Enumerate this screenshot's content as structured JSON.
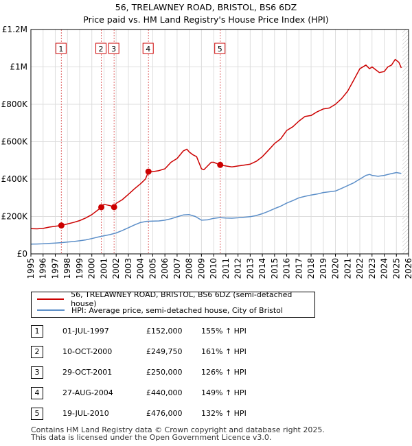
{
  "chart_data": {
    "type": "line",
    "title": "56, TRELAWNEY ROAD, BRISTOL, BS6 6DZ",
    "subtitle": "Price paid vs. HM Land Registry's House Price Index (HPI)",
    "xlim": [
      1995.0,
      2026.0
    ],
    "ylim": [
      0,
      1200000
    ],
    "y_ticks": [
      {
        "value": 0,
        "label": "£0"
      },
      {
        "value": 200000,
        "label": "£200K"
      },
      {
        "value": 400000,
        "label": "£400K"
      },
      {
        "value": 600000,
        "label": "£600K"
      },
      {
        "value": 800000,
        "label": "£800K"
      },
      {
        "value": 1000000,
        "label": "£1M"
      },
      {
        "value": 1200000,
        "label": "£1.2M"
      }
    ],
    "x_ticks": [
      "1995",
      "1996",
      "1997",
      "1998",
      "1999",
      "2000",
      "2001",
      "2002",
      "2003",
      "2004",
      "2005",
      "2006",
      "2007",
      "2008",
      "2009",
      "2010",
      "2011",
      "2012",
      "2013",
      "2014",
      "2015",
      "2016",
      "2017",
      "2018",
      "2019",
      "2020",
      "2021",
      "2022",
      "2023",
      "2024",
      "2025",
      "2026"
    ],
    "series": [
      {
        "name": "56, TRELAWNEY ROAD, BRISTOL, BS6 6DZ (semi-detached house)",
        "color": "#cc0000",
        "x": [
          1995.0,
          1995.5,
          1996.0,
          1996.5,
          1997.0,
          1997.5,
          1998.0,
          1998.5,
          1999.0,
          1999.5,
          2000.0,
          2000.5,
          2000.78,
          2001.0,
          2001.5,
          2001.83,
          2002.0,
          2002.5,
          2003.0,
          2003.5,
          2004.0,
          2004.4,
          2004.65,
          2005.0,
          2005.5,
          2006.0,
          2006.5,
          2007.0,
          2007.5,
          2007.8,
          2008.0,
          2008.3,
          2008.6,
          2009.0,
          2009.2,
          2009.5,
          2009.8,
          2010.0,
          2010.3,
          2010.54,
          2011.0,
          2011.5,
          2012.0,
          2012.5,
          2013.0,
          2013.5,
          2014.0,
          2014.5,
          2015.0,
          2015.5,
          2016.0,
          2016.5,
          2017.0,
          2017.5,
          2018.0,
          2018.5,
          2019.0,
          2019.5,
          2020.0,
          2020.5,
          2021.0,
          2021.5,
          2022.0,
          2022.5,
          2022.8,
          2023.0,
          2023.3,
          2023.6,
          2024.0,
          2024.3,
          2024.6,
          2024.9,
          2025.2,
          2025.4
        ],
        "values": [
          135000,
          134000,
          136000,
          143000,
          148000,
          152000,
          160000,
          168000,
          178000,
          192000,
          210000,
          235000,
          249750,
          265000,
          258000,
          250000,
          270000,
          290000,
          318000,
          348000,
          375000,
          400000,
          440000,
          440000,
          445000,
          455000,
          490000,
          510000,
          550000,
          560000,
          545000,
          530000,
          520000,
          455000,
          450000,
          470000,
          490000,
          490000,
          482000,
          476000,
          470000,
          465000,
          470000,
          475000,
          480000,
          495000,
          520000,
          555000,
          590000,
          615000,
          660000,
          680000,
          710000,
          735000,
          740000,
          760000,
          775000,
          780000,
          800000,
          830000,
          870000,
          930000,
          990000,
          1010000,
          990000,
          1000000,
          985000,
          970000,
          975000,
          1000000,
          1010000,
          1040000,
          1025000,
          995000
        ]
      },
      {
        "name": "HPI: Average price, semi-detached house, City of Bristol",
        "color": "#5b8ec8",
        "x": [
          1995.0,
          1995.5,
          1996.0,
          1996.5,
          1997.0,
          1997.5,
          1998.0,
          1998.5,
          1999.0,
          1999.5,
          2000.0,
          2000.5,
          2001.0,
          2001.5,
          2002.0,
          2002.5,
          2003.0,
          2003.5,
          2004.0,
          2004.5,
          2005.0,
          2005.5,
          2006.0,
          2006.5,
          2007.0,
          2007.5,
          2008.0,
          2008.5,
          2009.0,
          2009.5,
          2010.0,
          2010.5,
          2011.0,
          2011.5,
          2012.0,
          2012.5,
          2013.0,
          2013.5,
          2014.0,
          2014.5,
          2015.0,
          2015.5,
          2016.0,
          2016.5,
          2017.0,
          2017.5,
          2018.0,
          2018.5,
          2019.0,
          2019.5,
          2020.0,
          2020.5,
          2021.0,
          2021.5,
          2022.0,
          2022.5,
          2022.8,
          2023.0,
          2023.5,
          2024.0,
          2024.5,
          2025.0,
          2025.4
        ],
        "values": [
          52000,
          53000,
          54000,
          56000,
          58000,
          60000,
          63000,
          66000,
          70000,
          75000,
          82000,
          90000,
          97000,
          103000,
          112000,
          125000,
          140000,
          155000,
          168000,
          174000,
          175000,
          176000,
          180000,
          188000,
          198000,
          208000,
          210000,
          200000,
          180000,
          182000,
          190000,
          194000,
          192000,
          191000,
          193000,
          196000,
          199000,
          205000,
          215000,
          228000,
          242000,
          255000,
          272000,
          285000,
          300000,
          308000,
          315000,
          320000,
          328000,
          332000,
          336000,
          350000,
          365000,
          380000,
          400000,
          420000,
          425000,
          420000,
          415000,
          420000,
          428000,
          435000,
          430000
        ]
      }
    ],
    "sales": [
      {
        "num": "1",
        "x": 1997.5,
        "price": 152000,
        "date": "01-JUL-1997",
        "price_label": "£152,000",
        "hpi": "155% ↑ HPI"
      },
      {
        "num": "2",
        "x": 2000.78,
        "price": 249750,
        "date": "10-OCT-2000",
        "price_label": "£249,750",
        "hpi": "161% ↑ HPI"
      },
      {
        "num": "3",
        "x": 2001.83,
        "price": 250000,
        "date": "29-OCT-2001",
        "price_label": "£250,000",
        "hpi": "126% ↑ HPI"
      },
      {
        "num": "4",
        "x": 2004.65,
        "price": 440000,
        "date": "27-AUG-2004",
        "price_label": "£440,000",
        "hpi": "149% ↑ HPI"
      },
      {
        "num": "5",
        "x": 2010.54,
        "price": 476000,
        "date": "19-JUL-2010",
        "price_label": "£476,000",
        "hpi": "132% ↑ HPI"
      }
    ],
    "future_start": 2025.5,
    "grid": true
  },
  "footer": {
    "line1": "Contains HM Land Registry data © Crown copyright and database right 2025.",
    "line2": "This data is licensed under the Open Government Licence v3.0."
  },
  "colors": {
    "price": "#cc0000",
    "hpi": "#5b8ec8",
    "grid": "#dddddd",
    "plot_bg": "#ffffff",
    "vline": "#e06666"
  }
}
